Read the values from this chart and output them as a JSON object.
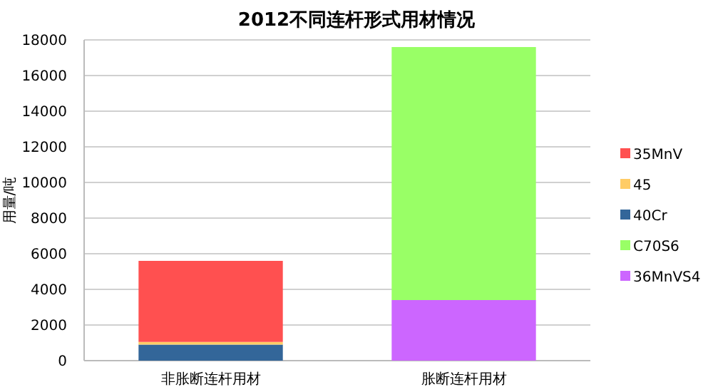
{
  "chart_data": {
    "type": "bar",
    "title": "2012不同连杆形式用材情况",
    "ylabel": "用量/吨",
    "categories": [
      "非胀断连杆用材",
      "胀断连杆用材"
    ],
    "stacked": true,
    "series": [
      {
        "name": "36MnVS4",
        "color": "#cc66ff",
        "values": [
          0,
          3400
        ]
      },
      {
        "name": "C70S6",
        "color": "#99ff66",
        "values": [
          0,
          14200
        ]
      },
      {
        "name": "40Cr",
        "color": "#336699",
        "values": [
          900,
          0
        ]
      },
      {
        "name": "45",
        "color": "#ffcc66",
        "values": [
          150,
          0
        ]
      },
      {
        "name": "35MnV",
        "color": "#ff5050",
        "values": [
          4550,
          0
        ]
      }
    ],
    "ylim": [
      0,
      18000
    ],
    "yticks": [
      0,
      2000,
      4000,
      6000,
      8000,
      10000,
      12000,
      14000,
      16000,
      18000
    ],
    "grid": true,
    "legend": "right"
  }
}
